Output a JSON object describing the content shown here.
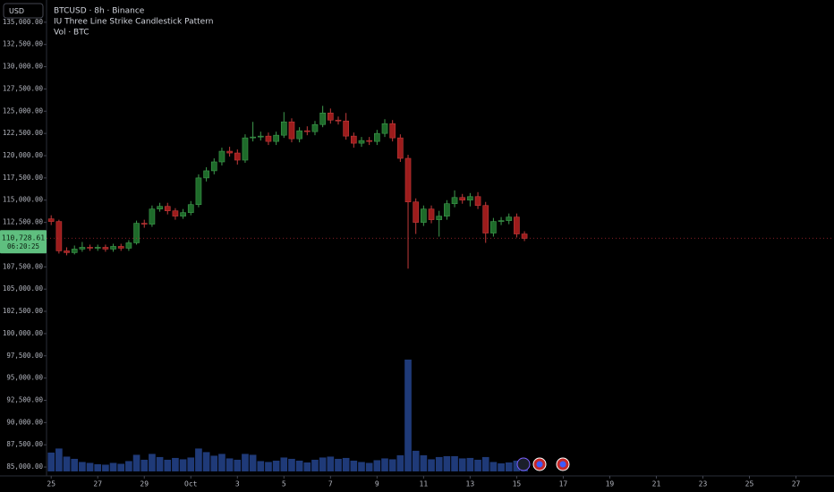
{
  "chart_data": {
    "type": "candlestick",
    "currency_button": "USD",
    "title": "BTCUSD · 8h · Binance",
    "indicator": "IU Three Line Strike Candlestick Pattern",
    "volume_label": "Vol · BTC",
    "up_color": "#1e6b2a",
    "down_color": "#9c1c1c",
    "volume_color": "#1f3a78",
    "last_price": {
      "value": 110728.61,
      "label": "110,728.61"
    },
    "countdown": "06:20:25",
    "open": [
      112900,
      112600,
      109300,
      109100,
      109500,
      109700,
      109600,
      109700,
      109500,
      109800,
      109600,
      110200,
      112400,
      112300,
      114000,
      114300,
      113800,
      113200,
      113600,
      114500,
      117500,
      118300,
      119300,
      120500,
      120300,
      119500,
      122000,
      122100,
      122200,
      121600,
      122300,
      123800,
      121900,
      122800,
      122700,
      123500,
      124800,
      124000,
      123900,
      122200,
      121400,
      121700,
      121600,
      122500,
      123600,
      122000,
      119700,
      114800,
      112500,
      114000,
      112800,
      113200,
      114600,
      115300,
      115000,
      115400,
      114400,
      111300,
      112600,
      112700,
      113100,
      111200
    ],
    "high": [
      113300,
      112800,
      109700,
      109900,
      110300,
      110000,
      110000,
      110000,
      110100,
      110100,
      110500,
      112700,
      112800,
      114400,
      114700,
      114700,
      114100,
      114000,
      114900,
      117900,
      118700,
      119700,
      120900,
      121000,
      120700,
      122400,
      123800,
      122700,
      122600,
      122700,
      124900,
      124200,
      123200,
      123300,
      123900,
      125600,
      125300,
      124400,
      124800,
      122600,
      122100,
      122100,
      122900,
      124100,
      124000,
      122400,
      120100,
      115200,
      114400,
      114400,
      113800,
      115000,
      116100,
      115700,
      115800,
      115900,
      114800,
      113000,
      113100,
      113500,
      113500,
      111500
    ],
    "low": [
      112200,
      109000,
      108800,
      108900,
      109200,
      109300,
      109300,
      109200,
      109200,
      109300,
      109300,
      110000,
      111900,
      112000,
      113700,
      113400,
      112800,
      112900,
      113300,
      114200,
      117100,
      117900,
      118900,
      119900,
      119000,
      119200,
      121600,
      121700,
      121200,
      121200,
      122000,
      121500,
      121500,
      122300,
      122300,
      123200,
      123600,
      123500,
      121800,
      120900,
      121000,
      121200,
      121200,
      122100,
      121600,
      119300,
      107300,
      111200,
      112100,
      112400,
      110900,
      112800,
      114200,
      114600,
      114300,
      114000,
      110200,
      110900,
      112200,
      112300,
      110800,
      110400
    ],
    "close": [
      112600,
      109300,
      109100,
      109500,
      109700,
      109600,
      109700,
      109500,
      109800,
      109600,
      110200,
      112400,
      112300,
      114000,
      114300,
      113800,
      113200,
      113600,
      114500,
      117500,
      118300,
      119300,
      120500,
      120300,
      119500,
      122000,
      122100,
      122200,
      121600,
      122300,
      123800,
      121900,
      122800,
      122700,
      123500,
      124800,
      124000,
      123900,
      122200,
      121400,
      121700,
      121600,
      122500,
      123600,
      122000,
      119700,
      114800,
      112500,
      114000,
      112800,
      113200,
      114600,
      115300,
      115000,
      115400,
      114400,
      111300,
      112600,
      112700,
      113100,
      111200,
      110700
    ],
    "volume": [
      4200,
      5100,
      3300,
      2800,
      2100,
      1900,
      1600,
      1500,
      1900,
      1700,
      2300,
      3700,
      2600,
      3900,
      3200,
      2600,
      3000,
      2700,
      3100,
      5100,
      4300,
      3500,
      3900,
      2900,
      2600,
      3900,
      3700,
      2300,
      2100,
      2400,
      3100,
      2800,
      2400,
      2000,
      2600,
      3100,
      3300,
      2800,
      3000,
      2400,
      2100,
      1900,
      2500,
      2900,
      2700,
      3600,
      24900,
      4600,
      3600,
      2700,
      3200,
      3400,
      3400,
      2900,
      3000,
      2600,
      3200,
      2100,
      1800,
      2000,
      2400,
      1500
    ],
    "xlim": [
      -0.6,
      100.9
    ],
    "xticks": [
      {
        "value": 0,
        "label": "25"
      },
      {
        "value": 6,
        "label": "27"
      },
      {
        "value": 12,
        "label": "29"
      },
      {
        "value": 18,
        "label": "Oct"
      },
      {
        "value": 24,
        "label": "3"
      },
      {
        "value": 30,
        "label": "5"
      },
      {
        "value": 36,
        "label": "7"
      },
      {
        "value": 42,
        "label": "9"
      },
      {
        "value": 48,
        "label": "11"
      },
      {
        "value": 54,
        "label": "13"
      },
      {
        "value": 60,
        "label": "15"
      },
      {
        "value": 66,
        "label": "17"
      },
      {
        "value": 72,
        "label": "19"
      },
      {
        "value": 78,
        "label": "21"
      },
      {
        "value": 84,
        "label": "23"
      },
      {
        "value": 90,
        "label": "25"
      },
      {
        "value": 96,
        "label": "27"
      }
    ],
    "ylim": [
      83700,
      137500
    ],
    "yticks": [
      {
        "value": 135000,
        "label": "135,000.00"
      },
      {
        "value": 132500,
        "label": "132,500.00"
      },
      {
        "value": 130000,
        "label": "130,000.00"
      },
      {
        "value": 127500,
        "label": "127,500.00"
      },
      {
        "value": 125000,
        "label": "125,000.00"
      },
      {
        "value": 122500,
        "label": "122,500.00"
      },
      {
        "value": 120000,
        "label": "120,000.00"
      },
      {
        "value": 117500,
        "label": "117,500.00"
      },
      {
        "value": 115000,
        "label": "115,000.00"
      },
      {
        "value": 112500,
        "label": "112,500.00"
      },
      {
        "value": 110000,
        "label": "110,000.00"
      },
      {
        "value": 107500,
        "label": "107,500.00"
      },
      {
        "value": 105000,
        "label": "105,000.00"
      },
      {
        "value": 102500,
        "label": "102,500.00"
      },
      {
        "value": 100000,
        "label": "100,000.00"
      },
      {
        "value": 97500,
        "label": "97,500.00"
      },
      {
        "value": 95000,
        "label": "95,000.00"
      },
      {
        "value": 92500,
        "label": "92,500.00"
      },
      {
        "value": 90000,
        "label": "90,000.00"
      },
      {
        "value": 87500,
        "label": "87,500.00"
      },
      {
        "value": 85000,
        "label": "85,000.00"
      }
    ]
  }
}
